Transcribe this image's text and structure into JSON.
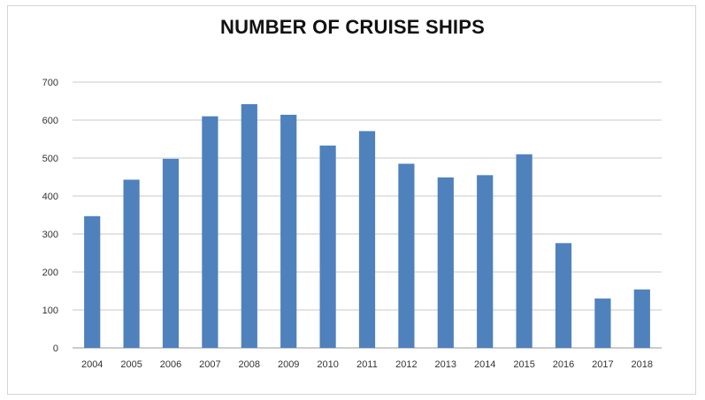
{
  "chart_data": {
    "type": "bar",
    "title": "NUMBER OF CRUISE SHIPS",
    "xlabel": "",
    "ylabel": "",
    "categories": [
      "2004",
      "2005",
      "2006",
      "2007",
      "2008",
      "2009",
      "2010",
      "2011",
      "2012",
      "2013",
      "2014",
      "2015",
      "2016",
      "2017",
      "2018"
    ],
    "values": [
      347,
      443,
      498,
      610,
      642,
      614,
      533,
      571,
      485,
      449,
      455,
      510,
      276,
      130,
      154
    ],
    "ylim": [
      0,
      700
    ],
    "yticks": [
      0,
      100,
      200,
      300,
      400,
      500,
      600,
      700
    ],
    "grid": true,
    "legend": "none",
    "colors": {
      "bar": "#4f81bd",
      "grid": "#c8c8c8",
      "axis": "#9a9a9a"
    }
  }
}
